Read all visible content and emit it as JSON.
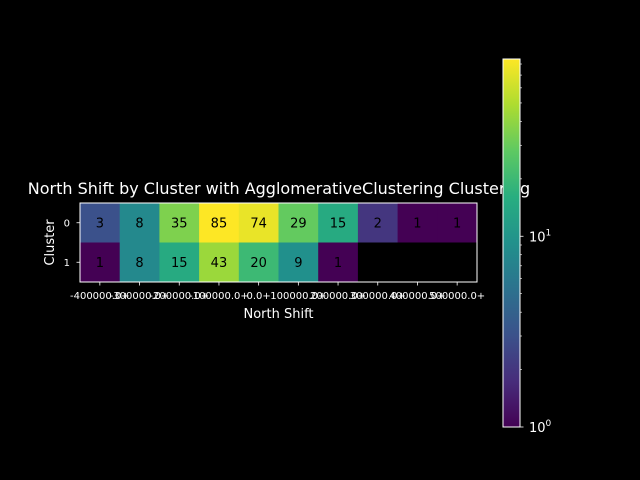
{
  "chart_data": {
    "type": "heatmap",
    "title": "North Shift by Cluster with AgglomerativeClustering Clustering",
    "xlabel": "North Shift",
    "ylabel": "Cluster",
    "x_categories": [
      "-400000.0+",
      "-300000.0+",
      "-200000.0+",
      "-100000.0+",
      "0.0+",
      "100000.0+",
      "200000.0+",
      "300000.0+",
      "400000.0+",
      "500000.0+"
    ],
    "y_categories": [
      "0",
      "1"
    ],
    "values": [
      [
        3,
        8,
        35,
        85,
        74,
        29,
        15,
        2,
        1,
        1
      ],
      [
        1,
        8,
        15,
        43,
        20,
        9,
        1,
        null,
        null,
        null
      ]
    ],
    "colorbar": {
      "scale": "log",
      "range": [
        1,
        85
      ],
      "colormap": "viridis",
      "tick_labels": [
        {
          "value": 1,
          "base": "10",
          "exp": "0"
        },
        {
          "value": 10,
          "base": "10",
          "exp": "1"
        }
      ]
    },
    "missing_color": "#000000"
  }
}
